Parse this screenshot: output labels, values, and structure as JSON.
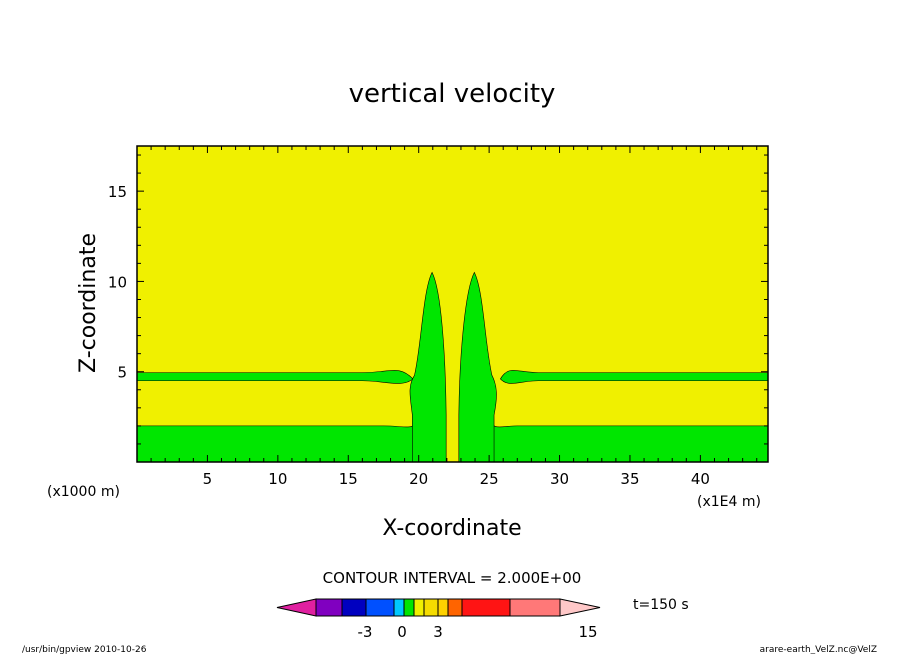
{
  "chart_data": {
    "type": "heatmap",
    "title": "vertical velocity",
    "xlabel": "X-coordinate",
    "ylabel": "Z-coordinate",
    "x_unit_left": "(x1000 m)",
    "x_unit_right": "(x1E4 m)",
    "xlim": [
      0,
      44.8
    ],
    "ylim": [
      0,
      17.5
    ],
    "x_ticks": [
      "5",
      "10",
      "15",
      "20",
      "25",
      "30",
      "35",
      "40"
    ],
    "y_ticks": [
      "5",
      "10",
      "15"
    ],
    "x_tick_values": [
      5,
      10,
      15,
      20,
      25,
      30,
      35,
      40
    ],
    "y_tick_values": [
      5,
      10,
      15
    ],
    "background_color": "#f0f000",
    "feature_color": "#00e600",
    "features": [
      {
        "name": "low-layer",
        "x_range": [
          0,
          44.8
        ],
        "z_range": [
          0,
          2.0
        ]
      },
      {
        "name": "mid-layer",
        "x_range": [
          0,
          44.8
        ],
        "z_range": [
          4.5,
          4.95
        ]
      },
      {
        "name": "left-plume",
        "x_range": [
          19.5,
          22.0
        ],
        "z_range": [
          0,
          10.5
        ]
      },
      {
        "name": "right-plume",
        "x_range": [
          22.8,
          25.5
        ],
        "z_range": [
          0,
          10.5
        ]
      }
    ],
    "contour_interval_label": "CONTOUR INTERVAL = 2.000E+00",
    "colorbar": {
      "colors": [
        "#e020a0",
        "#8000c0",
        "#0000c0",
        "#0050ff",
        "#00c8ff",
        "#00e600",
        "#f0f000",
        "#f5dc00",
        "#ffd200",
        "#ff6400",
        "#ff1414",
        "#ff7878",
        "#ffc8c8"
      ],
      "labels": [
        "-3",
        "0",
        "3",
        "15"
      ]
    },
    "time_label": "t=150 s"
  },
  "footer": {
    "left": "/usr/bin/gpview   2010-10-26",
    "right": "arare-earth_VelZ.nc@VelZ"
  }
}
